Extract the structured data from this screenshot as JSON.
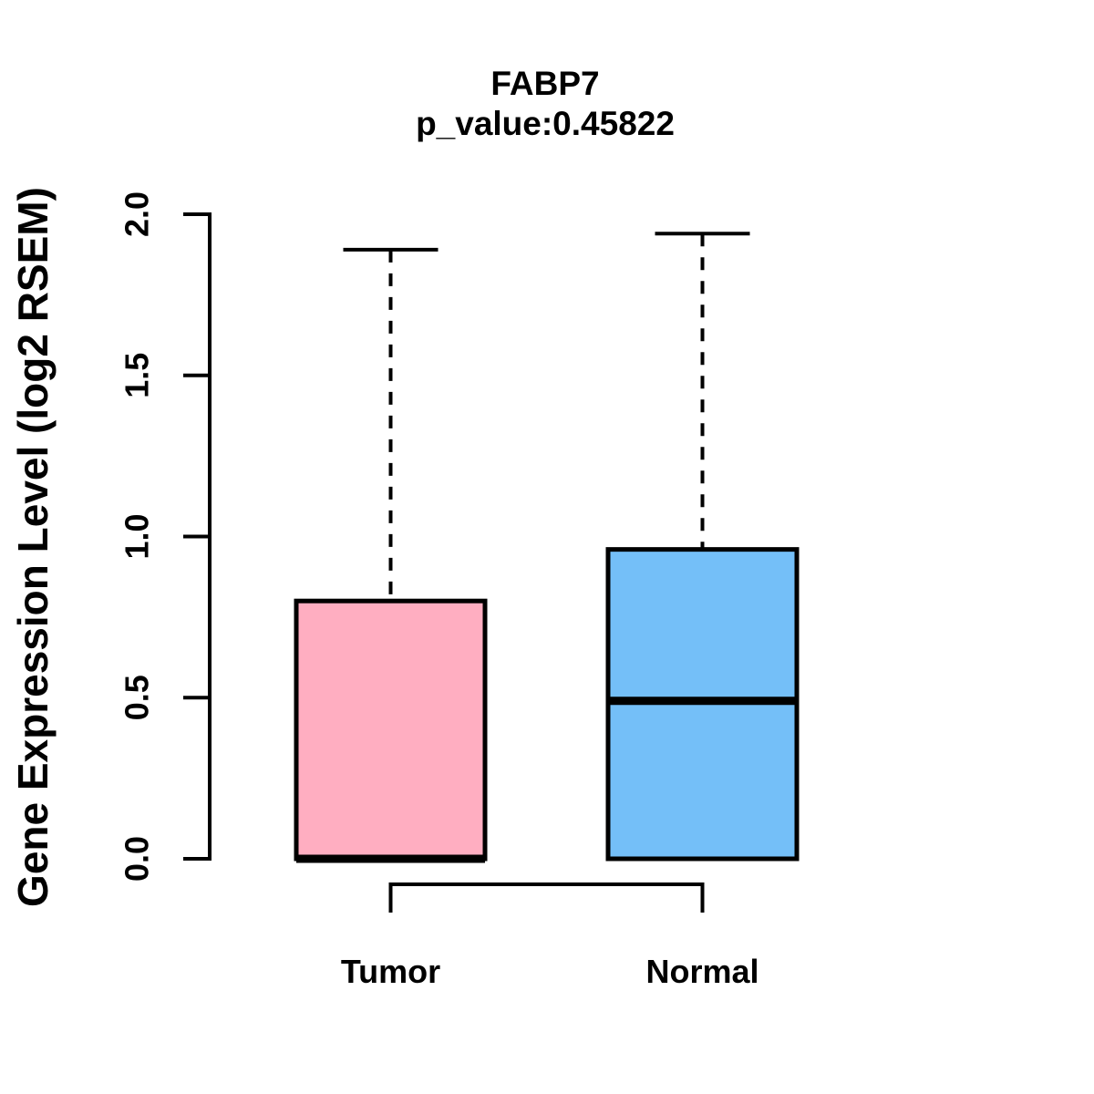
{
  "chart_data": {
    "type": "boxplot",
    "title": "FABP7",
    "subtitle": "p_value:0.45822",
    "ylabel": "Gene Expression Level (log2 RSEM)",
    "xlabel": "",
    "ylim": [
      0,
      2
    ],
    "yticks": [
      0,
      0.5,
      1,
      1.5,
      2
    ],
    "ytick_labels": [
      "0.0",
      "0.5",
      "1.0",
      "1.5",
      "2.0"
    ],
    "grid": false,
    "legend_position": "none",
    "whisker_style": "dashed",
    "groups": [
      {
        "label": "Tumor",
        "color": "#FFAEC1",
        "min": 0.0,
        "q1": 0.0,
        "median": 0.0,
        "q3": 0.8,
        "max": 1.89
      },
      {
        "label": "Normal",
        "color": "#74BFF8",
        "min": 0.0,
        "q1": 0.0,
        "median": 0.49,
        "q3": 0.96,
        "max": 1.94
      }
    ],
    "comparison_bracket": {
      "from": "Tumor",
      "to": "Normal"
    }
  },
  "colors": {
    "tumor_fill": "#FFAEC1",
    "normal_fill": "#74BFF8",
    "line": "#000000",
    "background": "#FFFFFF"
  }
}
